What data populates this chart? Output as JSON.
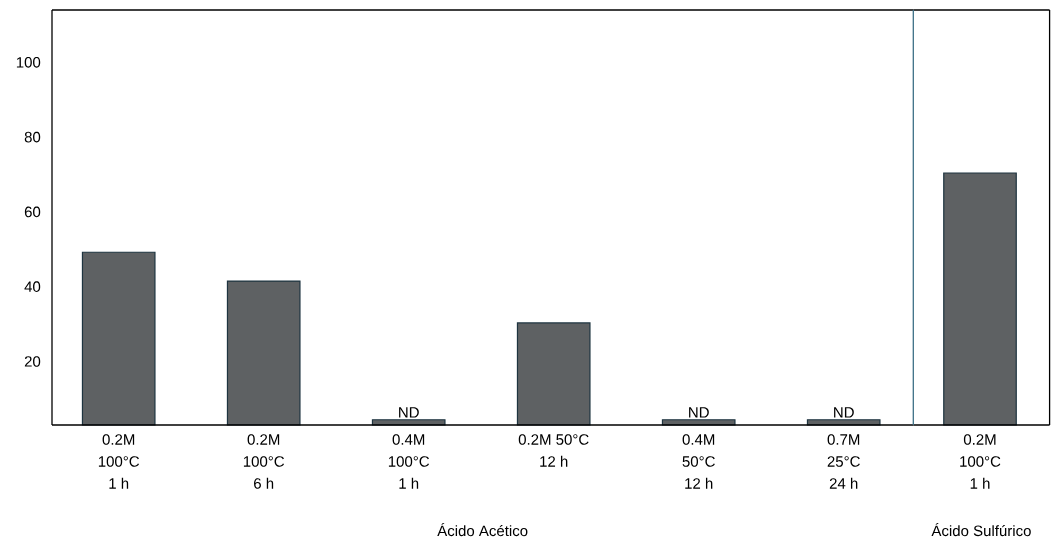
{
  "chart_data": [
    {
      "type": "bar",
      "categories": [
        "0.2M\n100°C\n1 h",
        "0.2M\n100°C\n6 h",
        "0.4M\n100°C\n1 h",
        "0.2M 50°C\n12 h",
        "0.4M\n50°C\n12 h",
        "0.7M\n25°C\n24 h"
      ],
      "values": [
        49.2,
        41.5,
        4.4,
        30.3,
        4.4,
        4.4
      ],
      "value_labels": [
        null,
        null,
        "ND",
        null,
        "ND",
        "ND"
      ],
      "color": "#5e6163",
      "ylim": [
        3,
        114
      ],
      "yticks": [
        20,
        40,
        60,
        80,
        100
      ],
      "annotations": [
        "Ácido Acético"
      ],
      "grid": false
    },
    {
      "type": "bar",
      "categories": [
        "0.2M\n100°C\n1 h"
      ],
      "values": [
        70.4
      ],
      "color": "#5e6163",
      "ylim": [
        3,
        114
      ],
      "tick_labels": "x",
      "annotations": [
        "Ácido Sulfúrico"
      ],
      "grid": false
    }
  ]
}
